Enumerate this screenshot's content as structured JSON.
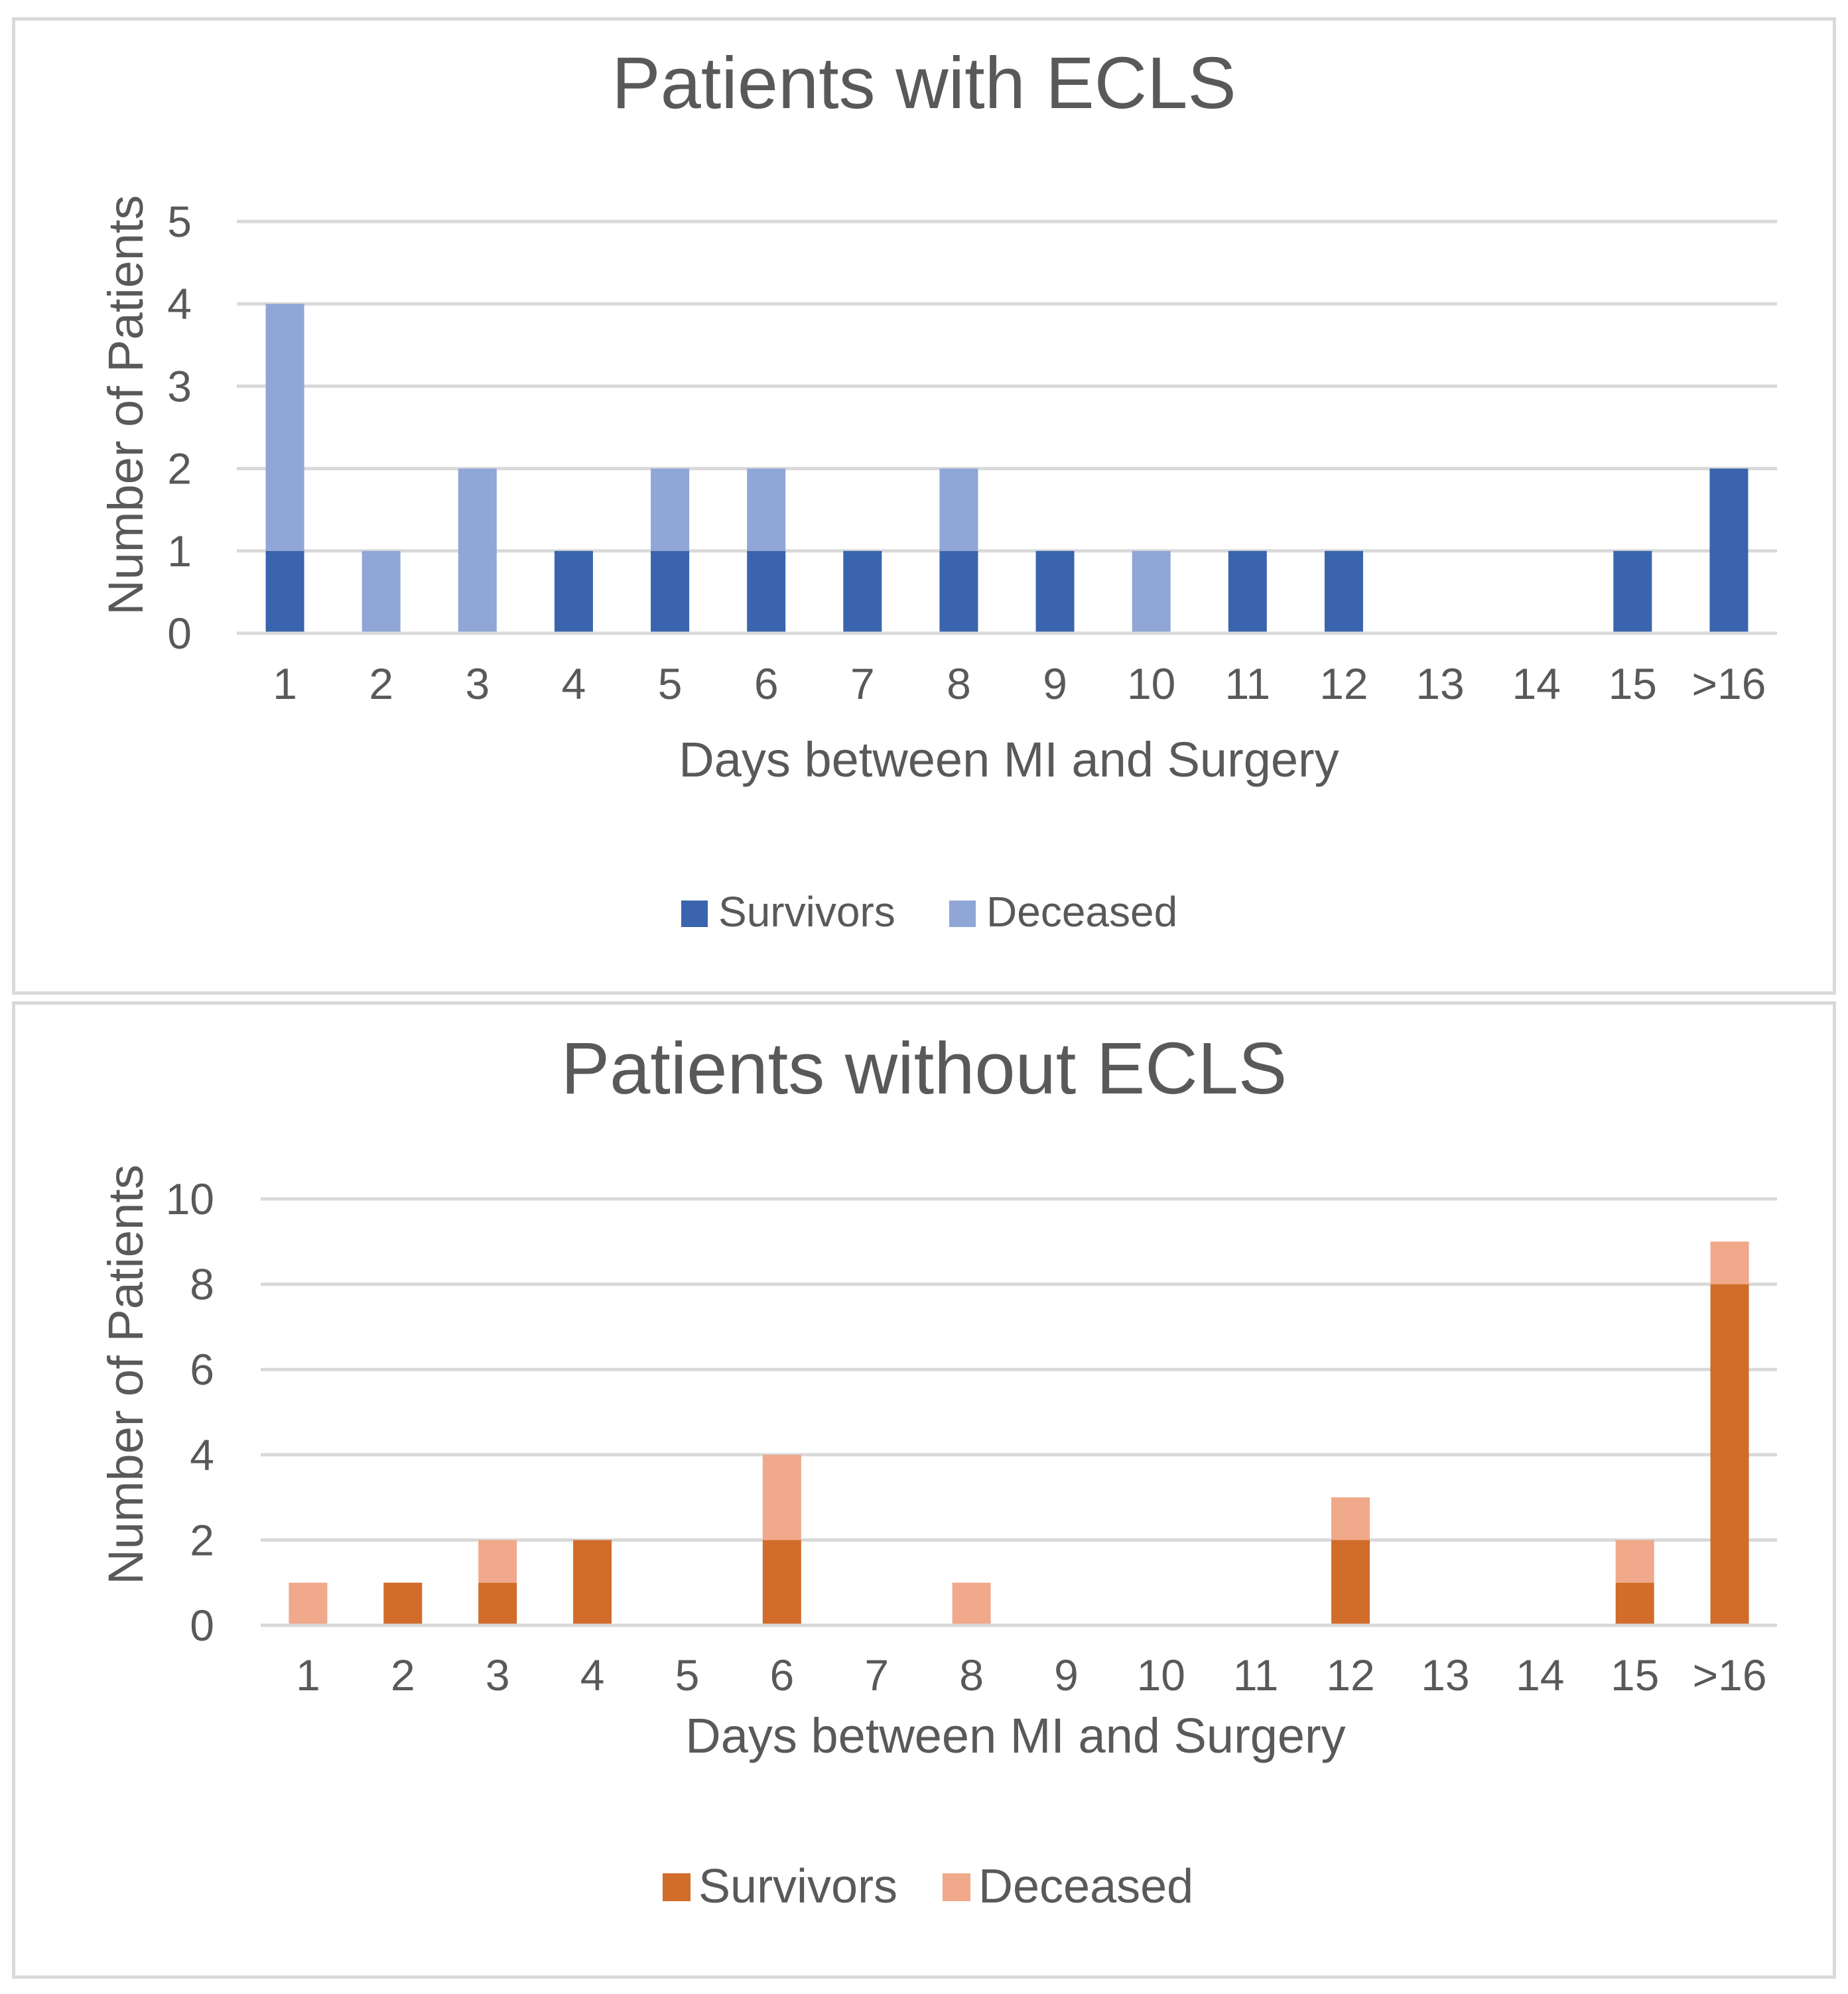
{
  "chart_data": [
    {
      "type": "bar",
      "stacked": true,
      "title": "Patients with ECLS",
      "xlabel": "Days between MI and Surgery",
      "ylabel": "Number of Patients",
      "categories": [
        "1",
        "2",
        "3",
        "4",
        "5",
        "6",
        "7",
        "8",
        "9",
        "10",
        "11",
        "12",
        "13",
        "14",
        "15",
        ">16"
      ],
      "ylim": [
        0,
        5
      ],
      "yticks": [
        0,
        1,
        2,
        3,
        4,
        5
      ],
      "grid": true,
      "legend_position": "bottom",
      "series": [
        {
          "name": "Survivors",
          "color": "#3a64ad",
          "values": [
            1,
            0,
            0,
            1,
            1,
            1,
            1,
            1,
            1,
            0,
            1,
            1,
            0,
            0,
            1,
            2
          ]
        },
        {
          "name": "Deceased",
          "color": "#8fa6d6",
          "values": [
            3,
            1,
            2,
            0,
            1,
            1,
            0,
            1,
            0,
            1,
            0,
            0,
            0,
            0,
            0,
            0
          ]
        }
      ]
    },
    {
      "type": "bar",
      "stacked": true,
      "title": "Patients without ECLS",
      "xlabel": "Days between MI and Surgery",
      "ylabel": "Number of Patients",
      "categories": [
        "1",
        "2",
        "3",
        "4",
        "5",
        "6",
        "7",
        "8",
        "9",
        "10",
        "11",
        "12",
        "13",
        "14",
        "15",
        ">16"
      ],
      "ylim": [
        0,
        10
      ],
      "yticks": [
        0,
        2,
        4,
        6,
        8,
        10
      ],
      "grid": true,
      "legend_position": "bottom",
      "series": [
        {
          "name": "Survivors",
          "color": "#d16c2a",
          "values": [
            0,
            1,
            1,
            2,
            0,
            2,
            0,
            0,
            0,
            0,
            0,
            2,
            0,
            0,
            1,
            8
          ]
        },
        {
          "name": "Deceased",
          "color": "#f0a98a",
          "values": [
            1,
            0,
            1,
            0,
            0,
            2,
            0,
            1,
            0,
            0,
            0,
            1,
            0,
            0,
            1,
            1
          ]
        }
      ]
    }
  ]
}
